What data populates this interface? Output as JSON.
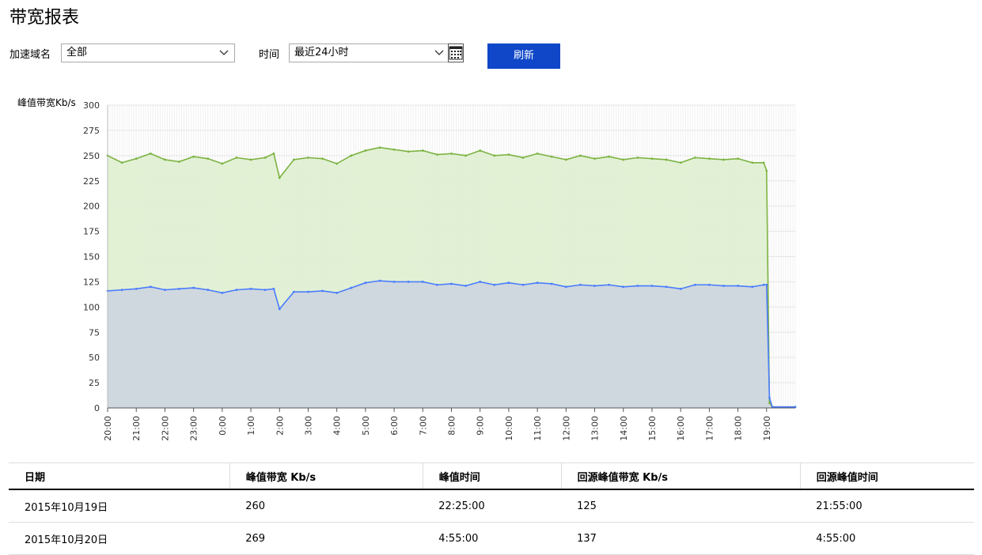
{
  "page": {
    "title": "带宽报表"
  },
  "filters": {
    "domain_label": "加速域名",
    "domain_value": "全部",
    "time_label": "时间",
    "time_value": "最近24小时",
    "refresh_label": "刷新"
  },
  "colors": {
    "green": "#7cb342",
    "green_fill": "#dff0d0",
    "blue": "#4a7cff",
    "blue_fill": "#cfd8de",
    "button": "#0f47c8"
  },
  "chart_data": {
    "type": "area",
    "ylabel": "峰值带宽Kb/s",
    "ylim": [
      0,
      300
    ],
    "yticks": [
      0,
      25,
      50,
      75,
      100,
      125,
      150,
      175,
      200,
      225,
      250,
      275,
      300
    ],
    "xticks": [
      "20:00",
      "21:00",
      "22:00",
      "23:00",
      "0:00",
      "1:00",
      "2:00",
      "3:00",
      "4:00",
      "5:00",
      "6:00",
      "7:00",
      "8:00",
      "9:00",
      "10:00",
      "11:00",
      "12:00",
      "13:00",
      "14:00",
      "15:00",
      "16:00",
      "17:00",
      "18:00",
      "19:00"
    ],
    "x_range_hours": [
      20,
      44
    ],
    "grid": true,
    "series": [
      {
        "name": "",
        "color": "#7cb342",
        "points": [
          [
            20.0,
            250
          ],
          [
            20.5,
            243
          ],
          [
            21.0,
            247
          ],
          [
            21.5,
            252
          ],
          [
            22.0,
            246
          ],
          [
            22.5,
            244
          ],
          [
            23.0,
            249
          ],
          [
            23.5,
            247
          ],
          [
            24.0,
            242
          ],
          [
            24.5,
            248
          ],
          [
            25.0,
            246
          ],
          [
            25.5,
            248
          ],
          [
            25.8,
            252
          ],
          [
            26.0,
            228
          ],
          [
            26.5,
            246
          ],
          [
            27.0,
            248
          ],
          [
            27.5,
            247
          ],
          [
            28.0,
            242
          ],
          [
            28.5,
            250
          ],
          [
            29.0,
            255
          ],
          [
            29.5,
            258
          ],
          [
            30.0,
            256
          ],
          [
            30.5,
            254
          ],
          [
            31.0,
            255
          ],
          [
            31.5,
            251
          ],
          [
            32.0,
            252
          ],
          [
            32.5,
            250
          ],
          [
            33.0,
            255
          ],
          [
            33.5,
            250
          ],
          [
            34.0,
            251
          ],
          [
            34.5,
            248
          ],
          [
            35.0,
            252
          ],
          [
            35.5,
            249
          ],
          [
            36.0,
            246
          ],
          [
            36.5,
            250
          ],
          [
            37.0,
            247
          ],
          [
            37.5,
            249
          ],
          [
            38.0,
            246
          ],
          [
            38.5,
            248
          ],
          [
            39.0,
            247
          ],
          [
            39.5,
            246
          ],
          [
            40.0,
            243
          ],
          [
            40.5,
            248
          ],
          [
            41.0,
            247
          ],
          [
            41.5,
            246
          ],
          [
            42.0,
            247
          ],
          [
            42.5,
            243
          ],
          [
            42.9,
            243
          ],
          [
            43.0,
            235
          ],
          [
            43.1,
            5
          ],
          [
            43.2,
            1
          ],
          [
            44.0,
            1
          ]
        ]
      },
      {
        "name": "",
        "color": "#4a7cff",
        "points": [
          [
            20.0,
            116
          ],
          [
            20.5,
            117
          ],
          [
            21.0,
            118
          ],
          [
            21.5,
            120
          ],
          [
            22.0,
            117
          ],
          [
            22.5,
            118
          ],
          [
            23.0,
            119
          ],
          [
            23.5,
            117
          ],
          [
            24.0,
            114
          ],
          [
            24.5,
            117
          ],
          [
            25.0,
            118
          ],
          [
            25.5,
            117
          ],
          [
            25.8,
            118
          ],
          [
            26.0,
            98
          ],
          [
            26.5,
            115
          ],
          [
            27.0,
            115
          ],
          [
            27.5,
            116
          ],
          [
            28.0,
            114
          ],
          [
            28.5,
            119
          ],
          [
            29.0,
            124
          ],
          [
            29.5,
            126
          ],
          [
            30.0,
            125
          ],
          [
            30.5,
            125
          ],
          [
            31.0,
            125
          ],
          [
            31.5,
            122
          ],
          [
            32.0,
            123
          ],
          [
            32.5,
            121
          ],
          [
            33.0,
            125
          ],
          [
            33.5,
            122
          ],
          [
            34.0,
            124
          ],
          [
            34.5,
            122
          ],
          [
            35.0,
            124
          ],
          [
            35.5,
            123
          ],
          [
            36.0,
            120
          ],
          [
            36.5,
            122
          ],
          [
            37.0,
            121
          ],
          [
            37.5,
            122
          ],
          [
            38.0,
            120
          ],
          [
            38.5,
            121
          ],
          [
            39.0,
            121
          ],
          [
            39.5,
            120
          ],
          [
            40.0,
            118
          ],
          [
            40.5,
            122
          ],
          [
            41.0,
            122
          ],
          [
            41.5,
            121
          ],
          [
            42.0,
            121
          ],
          [
            42.5,
            120
          ],
          [
            42.9,
            122
          ],
          [
            43.0,
            122
          ],
          [
            43.1,
            10
          ],
          [
            43.2,
            1
          ],
          [
            44.0,
            1
          ]
        ]
      }
    ]
  },
  "table": {
    "headers": [
      "日期",
      "峰值带宽 Kb/s",
      "峰值时间",
      "回源峰值带宽 Kb/s",
      "回源峰值时间"
    ],
    "rows": [
      [
        "2015年10月19日",
        "260",
        "22:25:00",
        "125",
        "21:55:00"
      ],
      [
        "2015年10月20日",
        "269",
        "4:55:00",
        "137",
        "4:55:00"
      ]
    ]
  }
}
